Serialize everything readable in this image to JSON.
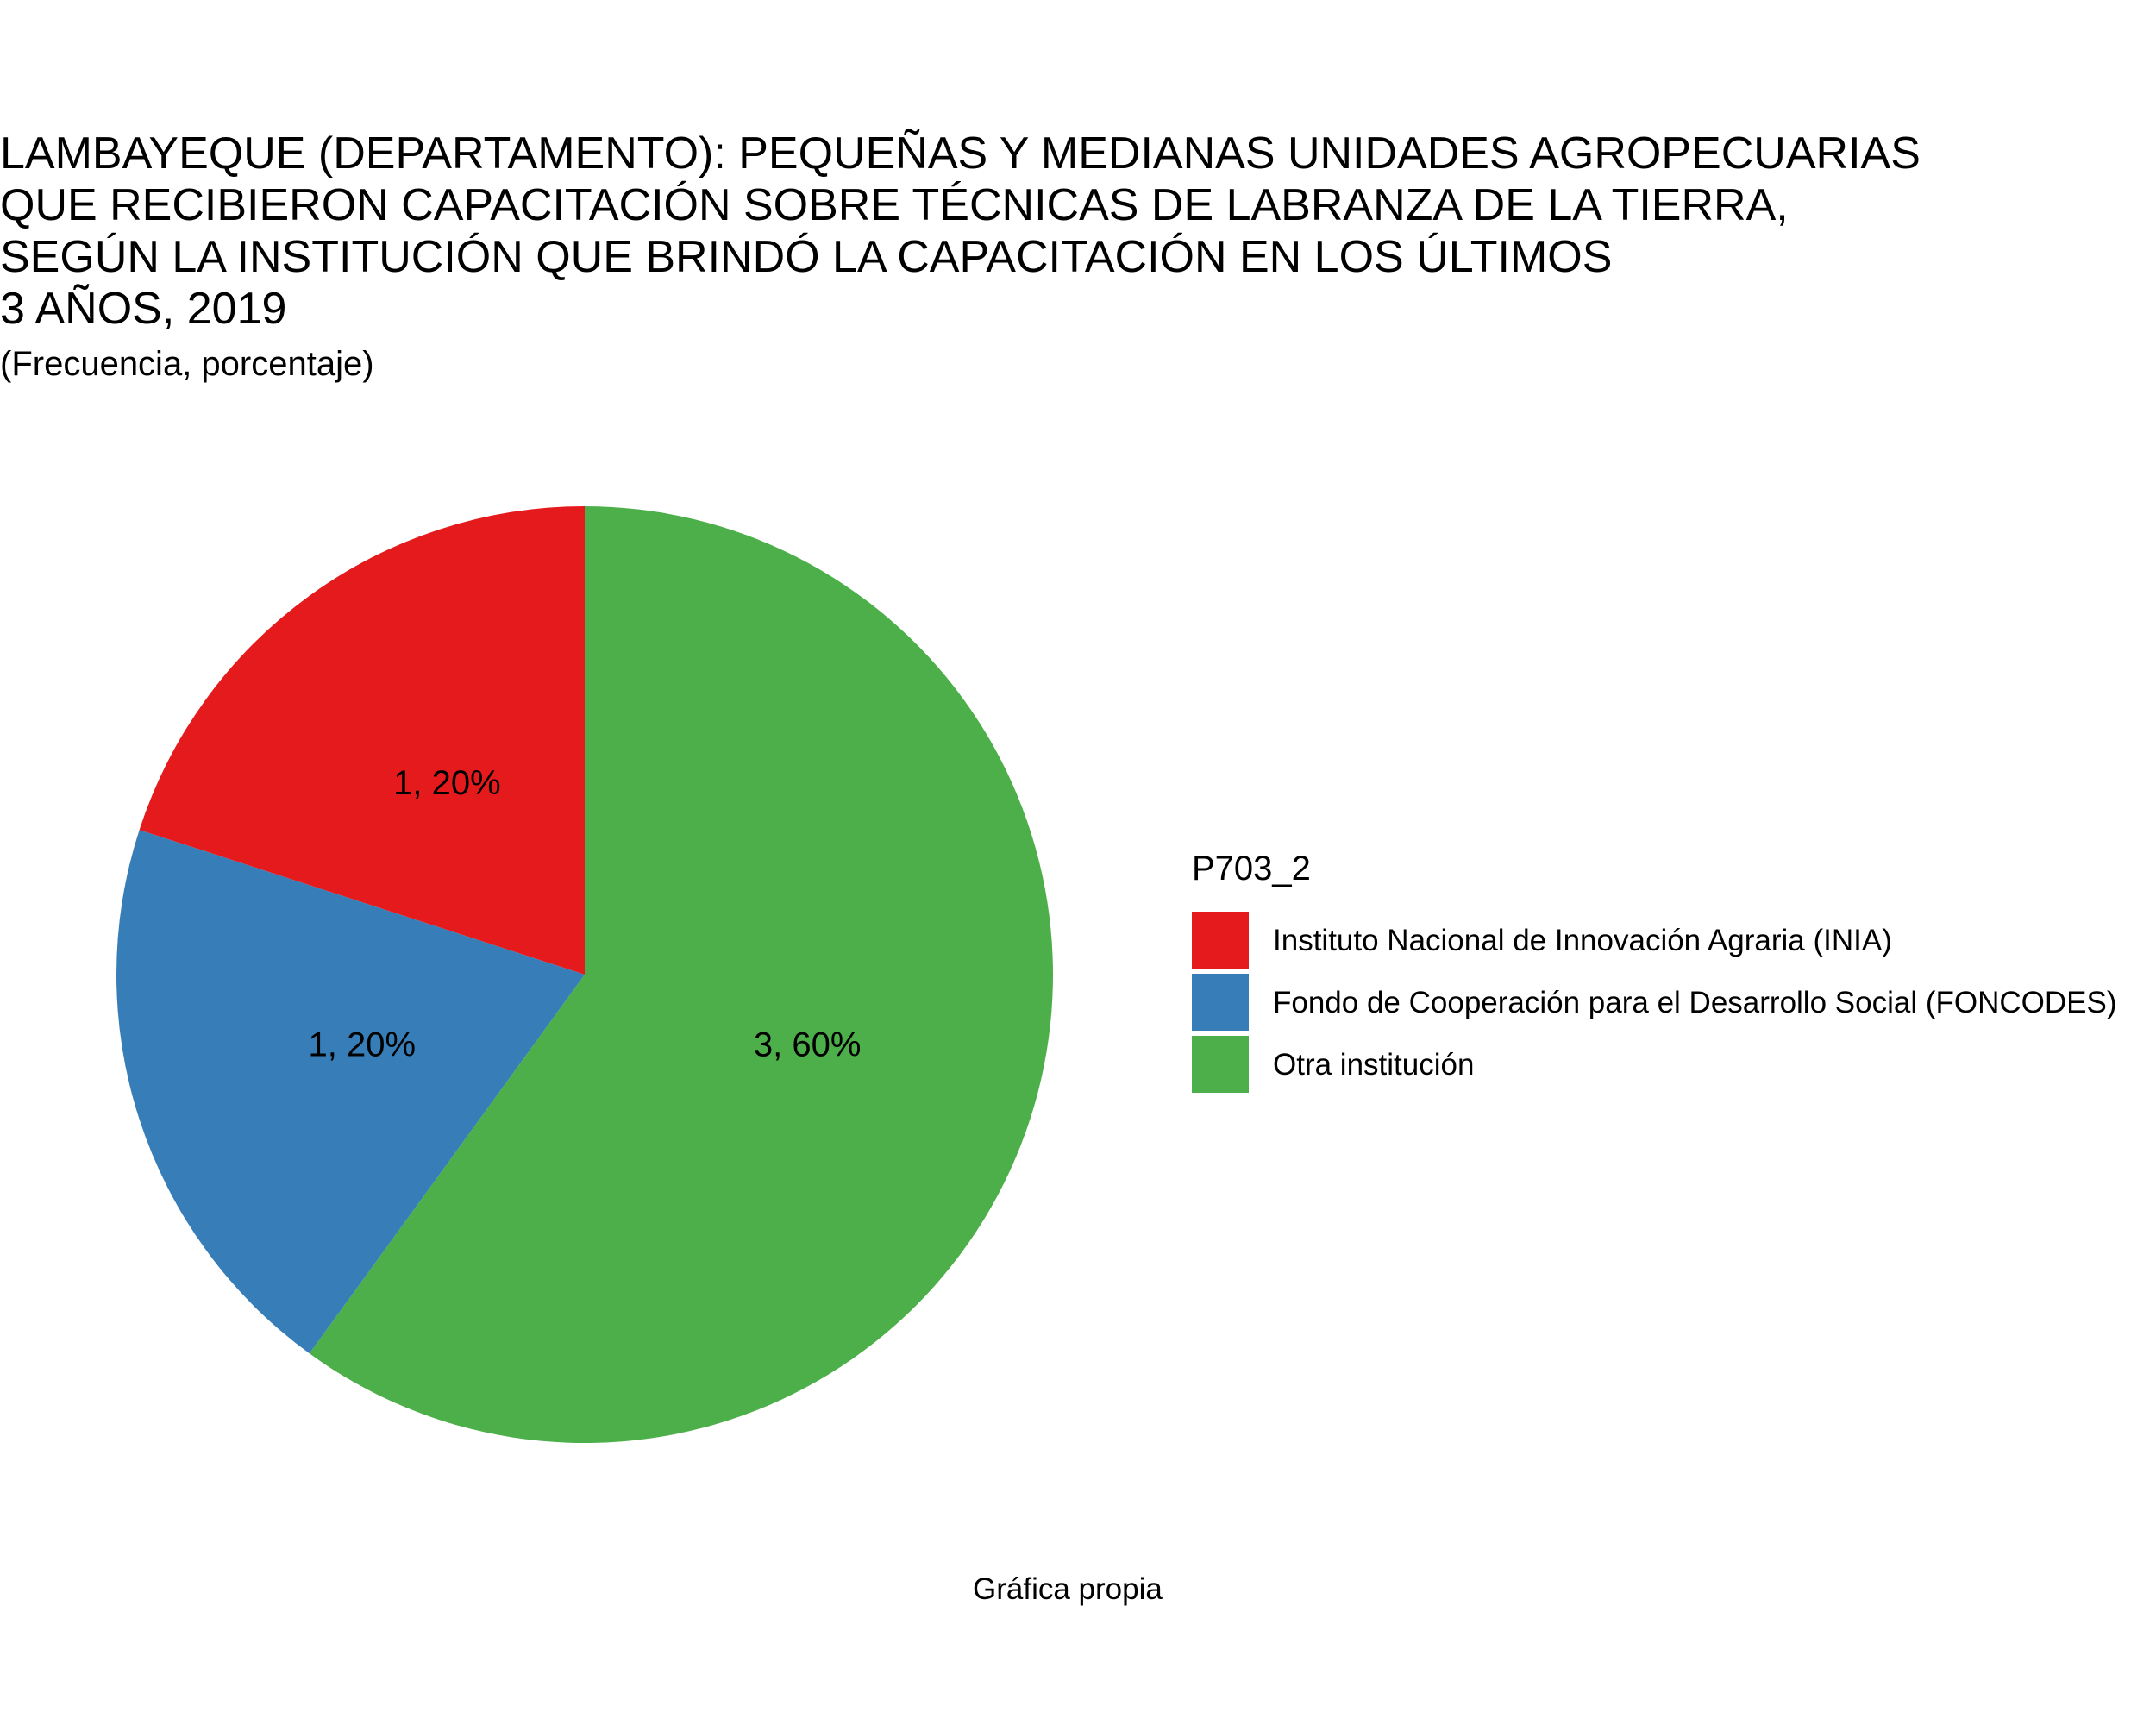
{
  "chart_data": {
    "type": "pie",
    "title_lines": [
      "LAMBAYEQUE (DEPARTAMENTO): PEQUEÑAS Y MEDIANAS UNIDADES AGROPECUARIAS",
      "QUE RECIBIERON CAPACITACIÓN SOBRE TÉCNICAS DE LABRANZA DE LA TIERRA,",
      "SEGÚN LA INSTITUCIÓN QUE BRINDÓ LA CAPACITACIÓN EN LOS ÚLTIMOS",
      "3 AÑOS, 2019"
    ],
    "subtitle": "(Frecuencia, porcentaje)",
    "caption": "Gráfica propia",
    "legend_title": "P703_2",
    "legend_position": "right",
    "slices": [
      {
        "label": "Instituto Nacional de Innovación Agraria (INIA)",
        "value": 1,
        "percent": 20,
        "data_label": "1, 20%",
        "color": "#E41A1C"
      },
      {
        "label": "Fondo de Cooperación para el Desarrollo Social (FONCODES)",
        "value": 1,
        "percent": 20,
        "data_label": "1, 20%",
        "color": "#377EB8"
      },
      {
        "label": "Otra institución",
        "value": 3,
        "percent": 60,
        "data_label": "3, 60%",
        "color": "#4DAF4A"
      }
    ]
  }
}
